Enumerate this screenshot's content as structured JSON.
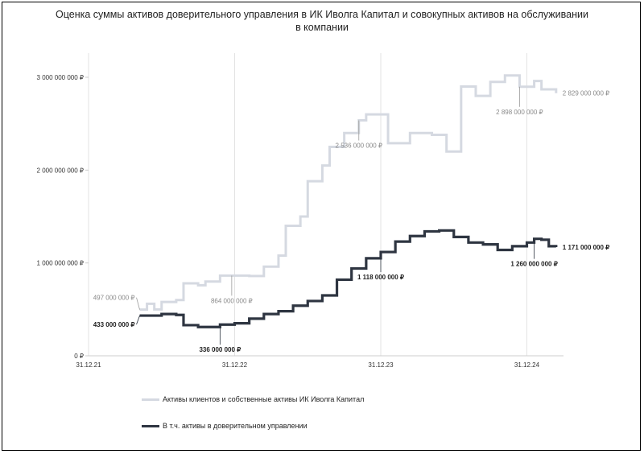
{
  "chart_data": {
    "type": "line",
    "title_lines": [
      "Оценка суммы активов доверительного управления в ИК Иволга Капитал и совокупных активов на обслуживании",
      "в компании"
    ],
    "x_ticks": [
      "31.12.21",
      "31.12.22",
      "31.12.23",
      "31.12.24"
    ],
    "y_ticks": [
      "0 ₽",
      "1 000 000 000 ₽",
      "2 000 000 000 ₽",
      "3 000 000 000 ₽"
    ],
    "ylim": [
      0,
      3000000000
    ],
    "grid": "vertical",
    "legend_position": "bottom-left",
    "series": [
      {
        "name": "Активы клиентов и собственные активы ИК Иволга Капитал",
        "color": "#d5d9e1",
        "points": [
          [
            0.35,
            497000000
          ],
          [
            0.4,
            560000000
          ],
          [
            0.45,
            500000000
          ],
          [
            0.5,
            580000000
          ],
          [
            0.6,
            600000000
          ],
          [
            0.65,
            780000000
          ],
          [
            0.75,
            760000000
          ],
          [
            0.8,
            800000000
          ],
          [
            0.9,
            864000000
          ],
          [
            1.0,
            864000000
          ],
          [
            1.1,
            860000000
          ],
          [
            1.2,
            960000000
          ],
          [
            1.3,
            1080000000
          ],
          [
            1.35,
            1400000000
          ],
          [
            1.45,
            1500000000
          ],
          [
            1.5,
            1880000000
          ],
          [
            1.6,
            2050000000
          ],
          [
            1.65,
            2250000000
          ],
          [
            1.75,
            2400000000
          ],
          [
            1.85,
            2536000000
          ],
          [
            1.9,
            2600000000
          ],
          [
            1.95,
            2600000000
          ],
          [
            2.05,
            2290000000
          ],
          [
            2.1,
            2290000000
          ],
          [
            2.2,
            2400000000
          ],
          [
            2.3,
            2400000000
          ],
          [
            2.35,
            2380000000
          ],
          [
            2.45,
            2200000000
          ],
          [
            2.55,
            2900000000
          ],
          [
            2.65,
            2800000000
          ],
          [
            2.75,
            2950000000
          ],
          [
            2.85,
            3020000000
          ],
          [
            2.95,
            2898000000
          ],
          [
            3.05,
            2960000000
          ],
          [
            3.1,
            2870000000
          ],
          [
            3.2,
            2829000000
          ]
        ]
      },
      {
        "name": "В т.ч. активы в доверительном управлении",
        "color": "#2e3541",
        "points": [
          [
            0.35,
            433000000
          ],
          [
            0.5,
            450000000
          ],
          [
            0.6,
            440000000
          ],
          [
            0.65,
            330000000
          ],
          [
            0.75,
            310000000
          ],
          [
            0.9,
            336000000
          ],
          [
            1.0,
            350000000
          ],
          [
            1.1,
            400000000
          ],
          [
            1.2,
            450000000
          ],
          [
            1.3,
            480000000
          ],
          [
            1.4,
            540000000
          ],
          [
            1.5,
            590000000
          ],
          [
            1.6,
            650000000
          ],
          [
            1.7,
            820000000
          ],
          [
            1.8,
            940000000
          ],
          [
            1.9,
            1050000000
          ],
          [
            2.0,
            1118000000
          ],
          [
            2.1,
            1230000000
          ],
          [
            2.2,
            1290000000
          ],
          [
            2.3,
            1340000000
          ],
          [
            2.4,
            1350000000
          ],
          [
            2.5,
            1280000000
          ],
          [
            2.6,
            1220000000
          ],
          [
            2.7,
            1200000000
          ],
          [
            2.8,
            1140000000
          ],
          [
            2.9,
            1180000000
          ],
          [
            3.0,
            1220000000
          ],
          [
            3.05,
            1260000000
          ],
          [
            3.1,
            1250000000
          ],
          [
            3.15,
            1180000000
          ],
          [
            3.2,
            1171000000
          ]
        ]
      }
    ],
    "annotations": [
      {
        "series": 0,
        "text": "497 000 000 ₽",
        "x": 0.35,
        "y": 497000000,
        "pos": "left"
      },
      {
        "series": 0,
        "text": "864 000 000 ₽",
        "x": 0.98,
        "y": 864000000,
        "pos": "below"
      },
      {
        "series": 0,
        "text": "2 536 000 000 ₽",
        "x": 1.85,
        "y": 2536000000,
        "pos": "below"
      },
      {
        "series": 0,
        "text": "2 898 000 000 ₽",
        "x": 2.95,
        "y": 2898000000,
        "pos": "below"
      },
      {
        "series": 0,
        "text": "2 829 000 000 ₽",
        "x": 3.2,
        "y": 2829000000,
        "pos": "right"
      },
      {
        "series": 1,
        "text": "433 000 000 ₽",
        "x": 0.35,
        "y": 433000000,
        "pos": "left"
      },
      {
        "series": 1,
        "text": "336 000 000 ₽",
        "x": 0.9,
        "y": 336000000,
        "pos": "below"
      },
      {
        "series": 1,
        "text": "1 118 000 000 ₽",
        "x": 2.0,
        "y": 1118000000,
        "pos": "below"
      },
      {
        "series": 1,
        "text": "1 260 000 000 ₽",
        "x": 3.05,
        "y": 1260000000,
        "pos": "below"
      },
      {
        "series": 1,
        "text": "1 171 000 000 ₽",
        "x": 3.2,
        "y": 1171000000,
        "pos": "right"
      }
    ]
  }
}
